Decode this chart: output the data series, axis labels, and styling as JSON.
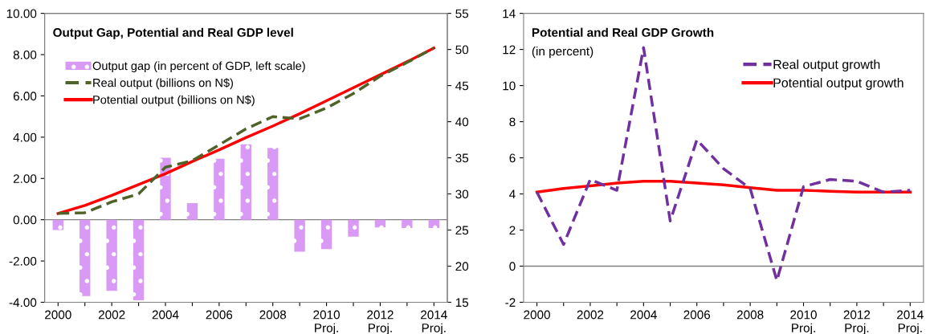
{
  "chart_data": [
    {
      "type": "bar",
      "title": "Output Gap, Potential and Real GDP level",
      "categories": [
        "2000",
        null,
        "2002",
        null,
        "2004",
        null,
        "2006",
        null,
        "2008",
        null,
        "2010\nProj.",
        null,
        "2012\nProj.",
        null,
        "2014\nProj."
      ],
      "series": [
        {
          "name": "Output gap (in percent of GDP, left scale)",
          "type": "bar",
          "color": "#d99af5",
          "values": [
            -0.5,
            -3.7,
            -3.45,
            -3.9,
            3.0,
            0.8,
            2.95,
            3.65,
            3.48,
            -1.55,
            -1.42,
            -0.82,
            -0.37,
            -0.4,
            -0.4
          ]
        },
        {
          "name": "Real output (billions on N$)",
          "type": "line",
          "axis": "y2",
          "line_style": "dashed",
          "color": "#4f6228",
          "values": [
            27.3,
            27.4,
            28.9,
            30.0,
            33.7,
            34.6,
            36.8,
            39.0,
            40.7,
            40.4,
            41.9,
            43.9,
            46.3,
            48.2,
            50.2
          ]
        },
        {
          "name": "Potential output (billions on N$)",
          "type": "line",
          "axis": "y2",
          "line_style": "solid",
          "color": "#ff0000",
          "values": [
            27.3,
            28.4,
            29.8,
            31.3,
            32.8,
            34.5,
            36.1,
            37.8,
            39.4,
            41.1,
            42.9,
            44.7,
            46.5,
            48.3,
            50.2
          ]
        }
      ],
      "ylim": [
        -4,
        10
      ],
      "yticks": [
        {
          "value": -4,
          "label": "-4.00"
        },
        {
          "value": -2,
          "label": "-2.00"
        },
        {
          "value": 0,
          "label": "0.00"
        },
        {
          "value": 2,
          "label": "2.00"
        },
        {
          "value": 4,
          "label": "4.00"
        },
        {
          "value": 6,
          "label": "6.00"
        },
        {
          "value": 8,
          "label": "8.00"
        },
        {
          "value": 10,
          "label": "10.00"
        }
      ],
      "y2lim": [
        15,
        55
      ],
      "y2ticks": [
        15,
        20,
        25,
        30,
        35,
        40,
        45,
        50,
        55
      ],
      "ref_lines": [
        {
          "axis": "y",
          "value": 0,
          "color": "#808080"
        }
      ],
      "grid": false,
      "legend": "top left"
    },
    {
      "type": "line",
      "title": "Potential and Real GDP Growth",
      "subtitle": "(in percent)",
      "categories": [
        "2000",
        null,
        "2002",
        null,
        "2004",
        null,
        "2006",
        null,
        "2008",
        null,
        "2010\nProj.",
        null,
        "2012\nProj.",
        null,
        "2014\nProj."
      ],
      "series": [
        {
          "name": "Real output growth",
          "line_style": "dashed",
          "color": "#7030a0",
          "values": [
            4.1,
            1.2,
            4.8,
            4.2,
            12.1,
            2.5,
            7.0,
            5.4,
            4.3,
            -0.8,
            4.4,
            4.8,
            4.7,
            4.1,
            4.2
          ]
        },
        {
          "name": "Potential output growth",
          "line_style": "solid",
          "color": "#ff0000",
          "values": [
            4.1,
            4.3,
            4.45,
            4.6,
            4.7,
            4.7,
            4.6,
            4.5,
            4.35,
            4.2,
            4.2,
            4.15,
            4.1,
            4.1,
            4.1
          ]
        }
      ],
      "ylim": [
        -2,
        14
      ],
      "yticks": [
        -2,
        0,
        2,
        4,
        6,
        8,
        10,
        12,
        14
      ],
      "ref_lines": [
        {
          "axis": "y",
          "value": 0,
          "color": "#808080"
        }
      ],
      "grid": false,
      "legend": "top right"
    }
  ]
}
